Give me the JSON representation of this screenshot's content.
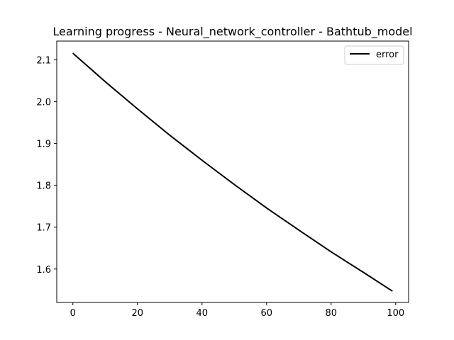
{
  "chart_data": {
    "type": "line",
    "title": "Learning progress - Neural_network_controller - Bathtub_model",
    "xlabel": "",
    "ylabel": "",
    "xlim": [
      -5,
      104
    ],
    "ylim": [
      1.52,
      2.145
    ],
    "xticks": [
      0,
      20,
      40,
      60,
      80,
      100
    ],
    "xtick_labels": [
      "0",
      "20",
      "40",
      "60",
      "80",
      "100"
    ],
    "yticks": [
      1.6,
      1.7,
      1.8,
      1.9,
      2.0,
      2.1
    ],
    "ytick_labels": [
      "1.6",
      "1.7",
      "1.8",
      "1.9",
      "2.0",
      "2.1"
    ],
    "grid": false,
    "legend": "top-right",
    "series": [
      {
        "name": "error",
        "color": "#000000",
        "x": [
          0,
          10,
          20,
          30,
          40,
          50,
          60,
          70,
          80,
          90,
          99
        ],
        "y": [
          2.116,
          2.048,
          1.983,
          1.92,
          1.86,
          1.802,
          1.746,
          1.693,
          1.641,
          1.592,
          1.547
        ]
      }
    ]
  }
}
